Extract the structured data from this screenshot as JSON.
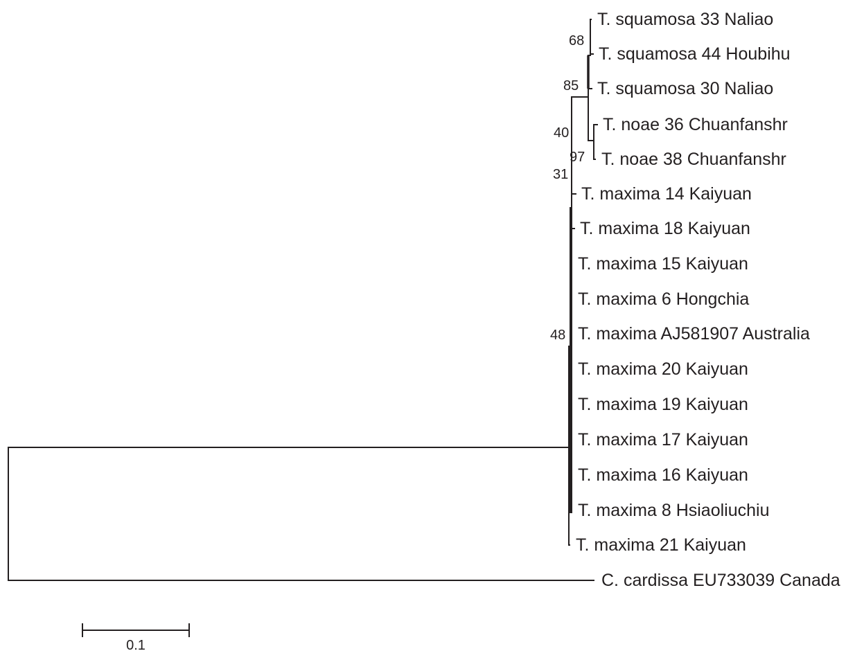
{
  "tree": {
    "taxa": [
      "T. squamosa 33 Naliao",
      "T. squamosa 44 Houbihu",
      "T. squamosa 30 Naliao",
      "T. noae 36 Chuanfanshr",
      "T. noae 38 Chuanfanshr",
      "T. maxima 14 Kaiyuan",
      "T. maxima 18 Kaiyuan",
      "T. maxima 15 Kaiyuan",
      "T. maxima 6 Hongchia",
      "T. maxima AJ581907 Australia",
      "T. maxima 20 Kaiyuan",
      "T. maxima 19 Kaiyuan",
      "T. maxima 17 Kaiyuan",
      "T. maxima 16 Kaiyuan",
      "T. maxima 8 Hsiaoliuchiu",
      "T. maxima 21 Kaiyuan",
      "C. cardissa EU733039 Canada"
    ],
    "support_values": {
      "squamosa_33_44": "68",
      "squamosa_clade": "85",
      "squamosa_noae": "40",
      "noae_clade": "97",
      "maxima_14_18": "31",
      "ingroup": "48"
    },
    "scale_bar": {
      "label": "0.1",
      "length": 0.1
    }
  },
  "colors": {
    "line": "#231f20",
    "text": "#231f20",
    "background": "#ffffff"
  }
}
